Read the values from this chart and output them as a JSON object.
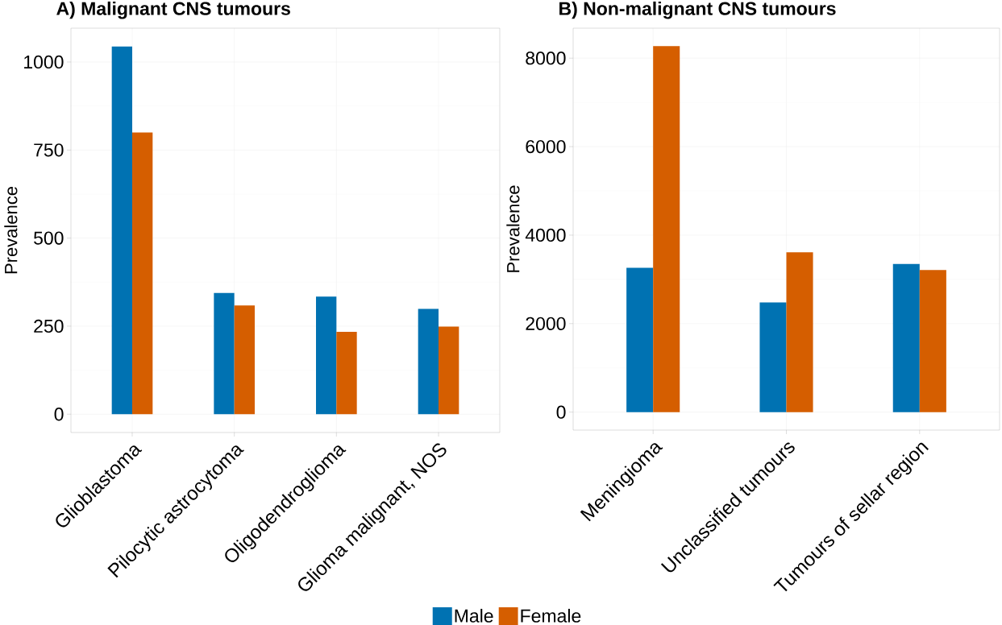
{
  "chart_data": [
    {
      "type": "bar",
      "title": "A) Malignant CNS tumours",
      "ylabel": "Prevalence",
      "categories": [
        "Glioblastoma",
        "Pilocytic astrocytoma",
        "Oligodendroglioma",
        "Glioma malignant, NOS"
      ],
      "series": [
        {
          "name": "Male",
          "color": "#0072b2",
          "values": [
            1044,
            344,
            334,
            299
          ]
        },
        {
          "name": "Female",
          "color": "#d55e00",
          "values": [
            800,
            309,
            234,
            249
          ]
        }
      ],
      "ylim": [
        -52,
        1096
      ],
      "yticks": [
        0,
        250,
        500,
        750,
        1000
      ],
      "grid": true,
      "legend": "bottom"
    },
    {
      "type": "bar",
      "title": "B) Non-malignant CNS tumours",
      "ylabel": "Prevalence",
      "categories": [
        "Meningioma",
        "Unclassified tumours",
        "Tumours of sellar region"
      ],
      "series": [
        {
          "color": "#0072b2",
          "values": [
            3260,
            2480,
            3350
          ]
        },
        {
          "color": "#d55e00",
          "values": [
            8270,
            3610,
            3210
          ]
        }
      ],
      "ylim": [
        -406,
        8677
      ],
      "yticks": [
        0,
        2000,
        4000,
        6000,
        8000
      ],
      "grid": true
    }
  ]
}
